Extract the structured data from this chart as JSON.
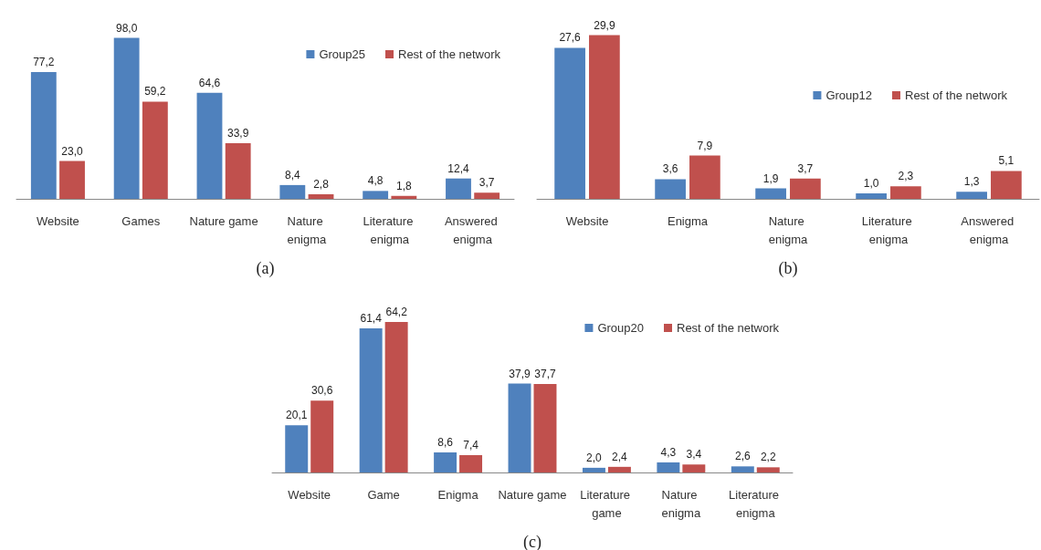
{
  "chart_data": [
    {
      "type": "bar",
      "categories": [
        "Website",
        "Games",
        "Nature game",
        "Nature enigma",
        "Literature enigma",
        "Answered enigma"
      ],
      "series": [
        {
          "name": "Group25",
          "color": "#4f81bd",
          "values": [
            77.2,
            98.0,
            64.6,
            8.4,
            4.8,
            12.4
          ],
          "value_labels": [
            "77,2",
            "98,0",
            "64,6",
            "8,4",
            "4,8",
            "12,4"
          ]
        },
        {
          "name": "Rest of the network",
          "color": "#c0504d",
          "values": [
            23.0,
            59.2,
            33.9,
            2.8,
            1.8,
            3.7
          ],
          "value_labels": [
            "23,0",
            "59,2",
            "33,9",
            "2,8",
            "1,8",
            "3,7"
          ]
        }
      ],
      "legend": "top right",
      "annotations": [
        "(a)"
      ]
    },
    {
      "type": "bar",
      "categories": [
        "Website",
        "Enigma",
        "Nature enigma",
        "Literature enigma",
        "Answered enigma"
      ],
      "series": [
        {
          "name": "Group12",
          "color": "#4f81bd",
          "values": [
            27.6,
            3.6,
            1.9,
            1.0,
            1.3
          ],
          "value_labels": [
            "27,6",
            "3,6",
            "1,9",
            "1,0",
            "1,3"
          ]
        },
        {
          "name": "Rest of the network",
          "color": "#c0504d",
          "values": [
            29.9,
            7.9,
            3.7,
            2.3,
            5.1
          ],
          "value_labels": [
            "29,9",
            "7,9",
            "3,7",
            "2,3",
            "5,1"
          ]
        }
      ],
      "legend": "right",
      "annotations": [
        "(b)"
      ]
    },
    {
      "type": "bar",
      "categories": [
        "Website",
        "Game",
        "Enigma",
        "Nature game",
        "Literature game",
        "Nature enigma",
        "Literature enigma"
      ],
      "series": [
        {
          "name": "Group20",
          "color": "#4f81bd",
          "values": [
            20.1,
            61.4,
            8.6,
            37.9,
            2.0,
            4.3,
            2.6
          ],
          "value_labels": [
            "20,1",
            "61,4",
            "8,6",
            "37,9",
            "2,0",
            "4,3",
            "2,6"
          ]
        },
        {
          "name": "Rest of the network",
          "color": "#c0504d",
          "values": [
            30.6,
            64.2,
            7.4,
            37.7,
            2.4,
            3.4,
            2.2
          ],
          "value_labels": [
            "30,6",
            "64,2",
            "7,4",
            "37,7",
            "2,4",
            "3,4",
            "2,2"
          ]
        }
      ],
      "legend": "top right",
      "annotations": [
        "(c)"
      ]
    }
  ]
}
